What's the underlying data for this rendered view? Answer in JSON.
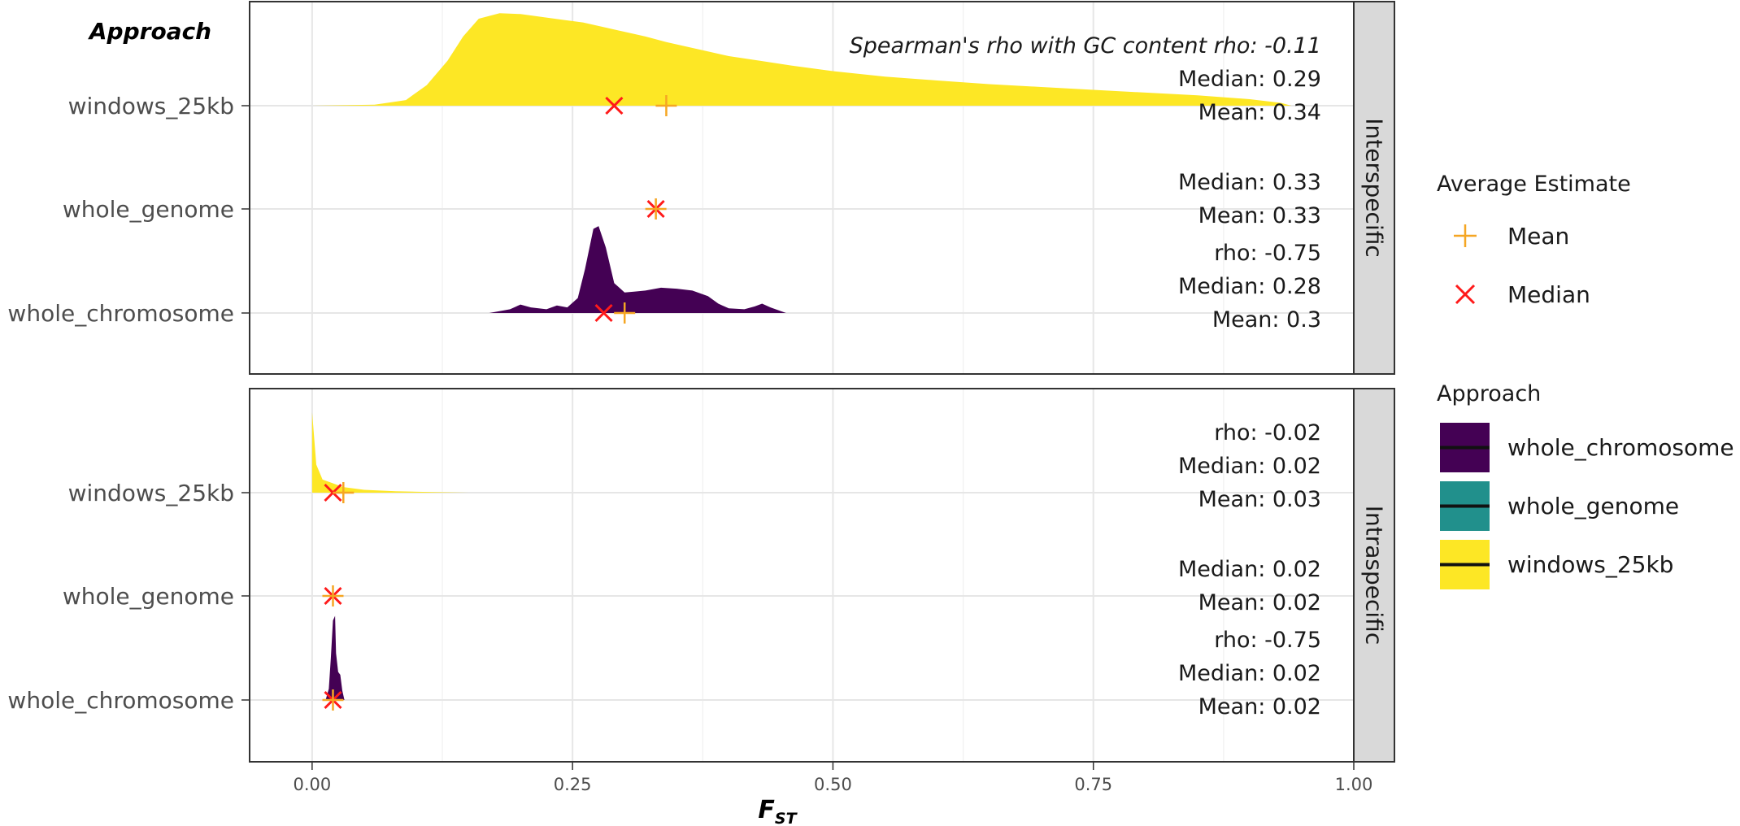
{
  "chart_data": {
    "type": "ridgeline",
    "x_axis": {
      "label_main": "F",
      "label_sub": "ST",
      "xlim": [
        -0.06,
        1.0
      ],
      "ticks": [
        0.0,
        0.25,
        0.5,
        0.75,
        1.0
      ],
      "tick_labels": [
        "0.00",
        "0.25",
        "0.50",
        "0.75",
        "1.00"
      ]
    },
    "y_axis_title": "Approach",
    "categories": [
      "windows_25kb",
      "whole_genome",
      "whole_chromosome"
    ],
    "grid": true,
    "panels": [
      {
        "strip": "Interspecific",
        "rows": [
          {
            "category": "windows_25kb",
            "mean": 0.34,
            "median": 0.29,
            "annotation_lines": [
              "Spearman's rho with GC content rho: -0.11",
              "Median: 0.29",
              "Mean: 0.34"
            ],
            "density": [
              [
                0.0,
                0.0
              ],
              [
                0.06,
                0.01
              ],
              [
                0.09,
                0.06
              ],
              [
                0.11,
                0.22
              ],
              [
                0.13,
                0.48
              ],
              [
                0.145,
                0.74
              ],
              [
                0.16,
                0.93
              ],
              [
                0.18,
                0.99
              ],
              [
                0.2,
                0.98
              ],
              [
                0.22,
                0.95
              ],
              [
                0.24,
                0.92
              ],
              [
                0.26,
                0.89
              ],
              [
                0.28,
                0.84
              ],
              [
                0.3,
                0.79
              ],
              [
                0.32,
                0.74
              ],
              [
                0.34,
                0.68
              ],
              [
                0.36,
                0.63
              ],
              [
                0.38,
                0.58
              ],
              [
                0.4,
                0.53
              ],
              [
                0.43,
                0.48
              ],
              [
                0.46,
                0.43
              ],
              [
                0.5,
                0.37
              ],
              [
                0.55,
                0.31
              ],
              [
                0.6,
                0.27
              ],
              [
                0.65,
                0.23
              ],
              [
                0.7,
                0.2
              ],
              [
                0.75,
                0.17
              ],
              [
                0.8,
                0.14
              ],
              [
                0.85,
                0.11
              ],
              [
                0.9,
                0.07
              ],
              [
                0.93,
                0.03
              ],
              [
                0.94,
                0.0
              ]
            ]
          },
          {
            "category": "whole_genome",
            "mean": 0.33,
            "median": 0.33,
            "annotation_lines": [
              "Median: 0.33",
              "Mean: 0.33"
            ],
            "density": []
          },
          {
            "category": "whole_chromosome",
            "mean": 0.3,
            "median": 0.28,
            "annotation_lines": [
              "rho: -0.75",
              "Median: 0.28",
              "Mean: 0.3"
            ],
            "density": [
              [
                0.17,
                0.0
              ],
              [
                0.19,
                0.04
              ],
              [
                0.2,
                0.09
              ],
              [
                0.21,
                0.06
              ],
              [
                0.225,
                0.04
              ],
              [
                0.235,
                0.08
              ],
              [
                0.245,
                0.06
              ],
              [
                0.255,
                0.16
              ],
              [
                0.262,
                0.47
              ],
              [
                0.27,
                0.9
              ],
              [
                0.275,
                0.93
              ],
              [
                0.282,
                0.7
              ],
              [
                0.29,
                0.32
              ],
              [
                0.3,
                0.22
              ],
              [
                0.31,
                0.23
              ],
              [
                0.32,
                0.24
              ],
              [
                0.335,
                0.27
              ],
              [
                0.35,
                0.26
              ],
              [
                0.365,
                0.24
              ],
              [
                0.38,
                0.18
              ],
              [
                0.39,
                0.1
              ],
              [
                0.4,
                0.05
              ],
              [
                0.415,
                0.04
              ],
              [
                0.425,
                0.07
              ],
              [
                0.432,
                0.1
              ],
              [
                0.44,
                0.06
              ],
              [
                0.455,
                0.0
              ]
            ]
          }
        ]
      },
      {
        "strip": "Intraspecific",
        "rows": [
          {
            "category": "windows_25kb",
            "mean": 0.03,
            "median": 0.02,
            "annotation_lines": [
              "rho: -0.02",
              "Median: 0.02",
              "Mean: 0.03"
            ],
            "density": [
              [
                0.0,
                0.0
              ],
              [
                0.0,
                0.86
              ],
              [
                0.004,
                0.3
              ],
              [
                0.01,
                0.14
              ],
              [
                0.02,
                0.1
              ],
              [
                0.03,
                0.06
              ],
              [
                0.05,
                0.03
              ],
              [
                0.08,
                0.015
              ],
              [
                0.12,
                0.005
              ],
              [
                0.15,
                0.0
              ]
            ]
          },
          {
            "category": "whole_genome",
            "mean": 0.02,
            "median": 0.02,
            "annotation_lines": [
              "Median: 0.02",
              "Mean: 0.02"
            ],
            "density": []
          },
          {
            "category": "whole_chromosome",
            "mean": 0.02,
            "median": 0.02,
            "annotation_lines": [
              "rho: -0.75",
              "Median: 0.02",
              "Mean: 0.02"
            ],
            "density": [
              [
                0.013,
                0.0
              ],
              [
                0.016,
                0.12
              ],
              [
                0.018,
                0.45
              ],
              [
                0.02,
                0.85
              ],
              [
                0.022,
                0.9
              ],
              [
                0.023,
                0.5
              ],
              [
                0.025,
                0.3
              ],
              [
                0.027,
                0.27
              ],
              [
                0.029,
                0.1
              ],
              [
                0.031,
                0.0
              ]
            ]
          }
        ]
      }
    ],
    "legends": [
      {
        "title": "Average Estimate",
        "items": [
          {
            "label": "Mean",
            "shape": "plus",
            "color": "#f5a623"
          },
          {
            "label": "Median",
            "shape": "cross",
            "color": "#ff1a1a"
          }
        ]
      },
      {
        "title": "Approach",
        "items": [
          {
            "label": "whole_chromosome",
            "fill": "#440154"
          },
          {
            "label": "whole_genome",
            "fill": "#21908c"
          },
          {
            "label": "windows_25kb",
            "fill": "#fde725"
          }
        ]
      }
    ],
    "colors": {
      "windows_25kb": "#fde725",
      "whole_genome": "#21908c",
      "whole_chromosome": "#440154",
      "mean_marker": "#f5a623",
      "median_marker": "#ff1a1a"
    }
  }
}
